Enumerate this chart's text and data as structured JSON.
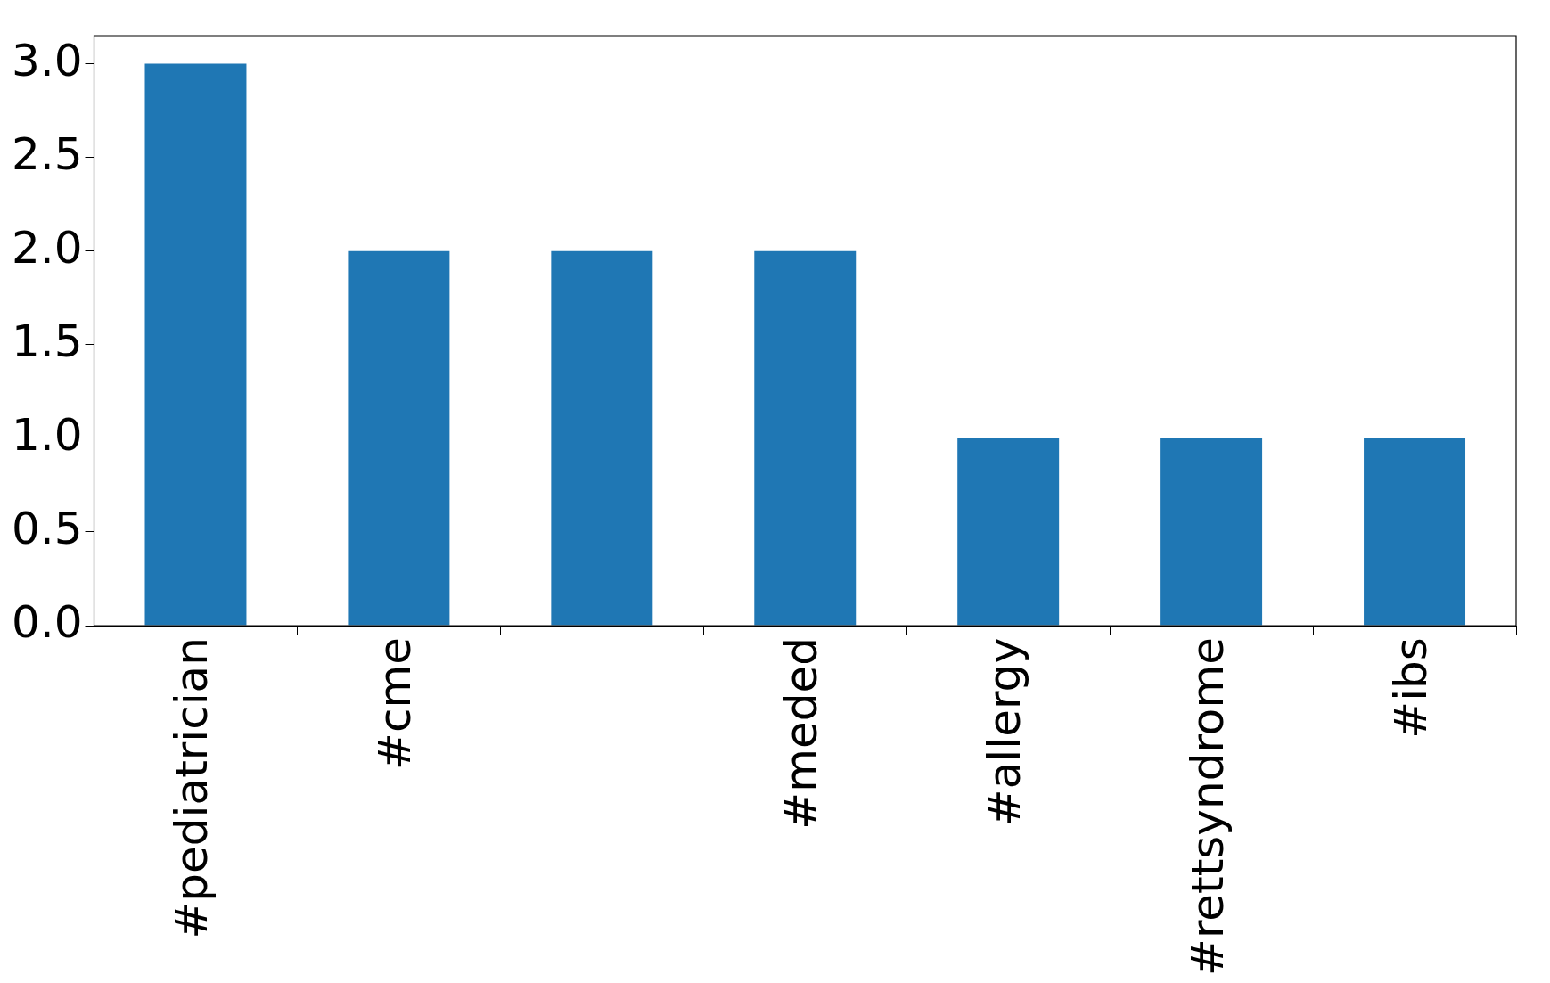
{
  "chart_data": {
    "type": "bar",
    "categories": [
      "#pediatrician",
      "#cme",
      null,
      "#meded",
      "#allergy",
      "#rettsyndrome",
      "#ibs"
    ],
    "values": [
      3,
      2,
      2,
      2,
      1,
      1,
      1
    ],
    "color": "#1f77b4",
    "ylim": [
      0,
      3.15
    ],
    "yticks": [
      {
        "value": 0,
        "label": "0.0"
      },
      {
        "value": 0.5,
        "label": "0.5"
      },
      {
        "value": 1,
        "label": "1.0"
      },
      {
        "value": 1.5,
        "label": "1.5"
      },
      {
        "value": 2,
        "label": "2.0"
      },
      {
        "value": 2.5,
        "label": "2.5"
      },
      {
        "value": 3,
        "label": "3.0"
      }
    ],
    "grid": false,
    "legend": false
  }
}
